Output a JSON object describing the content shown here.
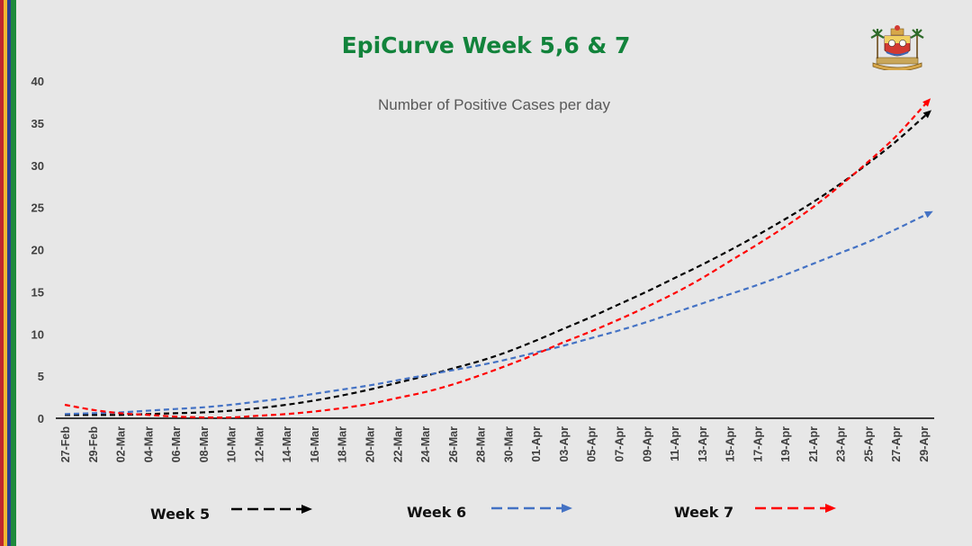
{
  "slide": {
    "title": "EpiCurve Week 5,6 & 7",
    "stripe_colors": [
      "#c0272d",
      "#f2b632",
      "#2a3f8f",
      "#1e8a3c"
    ],
    "logo_icon": "lagos-state-crest-icon"
  },
  "chart_data": {
    "type": "line",
    "title": "Number of Positive Cases per day",
    "xlabel": "",
    "ylabel": "",
    "ylim": [
      0,
      40
    ],
    "yticks": [
      0,
      5,
      10,
      15,
      20,
      25,
      30,
      35,
      40
    ],
    "categories": [
      "27-Feb",
      "29-Feb",
      "02-Mar",
      "04-Mar",
      "06-Mar",
      "08-Mar",
      "10-Mar",
      "12-Mar",
      "14-Mar",
      "16-Mar",
      "18-Mar",
      "20-Mar",
      "22-Mar",
      "24-Mar",
      "26-Mar",
      "28-Mar",
      "30-Mar",
      "01-Apr",
      "03-Apr",
      "05-Apr",
      "07-Apr",
      "09-Apr",
      "11-Apr",
      "13-Apr",
      "15-Apr",
      "17-Apr",
      "19-Apr",
      "21-Apr",
      "23-Apr",
      "25-Apr",
      "27-Apr",
      "29-Apr"
    ],
    "grid": false,
    "legend": "bottom",
    "series": [
      {
        "name": "Week 5",
        "color": "#000000",
        "values": [
          0.4,
          0.4,
          0.4,
          0.5,
          0.6,
          0.7,
          0.9,
          1.2,
          1.6,
          2.1,
          2.7,
          3.4,
          4.2,
          5.0,
          5.9,
          6.8,
          7.9,
          9.2,
          10.6,
          12.0,
          13.5,
          15.0,
          16.6,
          18.2,
          19.9,
          21.7,
          23.6,
          25.6,
          27.8,
          30.2,
          32.8,
          35.7
        ]
      },
      {
        "name": "Week 6",
        "color": "#4472c4",
        "values": [
          0.5,
          0.6,
          0.7,
          0.9,
          1.1,
          1.3,
          1.6,
          2.0,
          2.4,
          2.9,
          3.4,
          3.9,
          4.5,
          5.1,
          5.7,
          6.3,
          7.0,
          7.8,
          8.6,
          9.5,
          10.4,
          11.4,
          12.5,
          13.6,
          14.7,
          15.8,
          17.0,
          18.3,
          19.6,
          20.9,
          22.4,
          24.0
        ]
      },
      {
        "name": "Week 7",
        "color": "#ff0000",
        "values": [
          1.6,
          1.0,
          0.6,
          0.4,
          0.2,
          0.1,
          0.1,
          0.3,
          0.5,
          0.8,
          1.2,
          1.7,
          2.4,
          3.1,
          4.0,
          5.1,
          6.3,
          7.6,
          9.0,
          10.3,
          11.7,
          13.2,
          14.8,
          16.6,
          18.6,
          20.6,
          22.7,
          25.0,
          27.6,
          30.4,
          33.4,
          37.0
        ]
      }
    ]
  }
}
